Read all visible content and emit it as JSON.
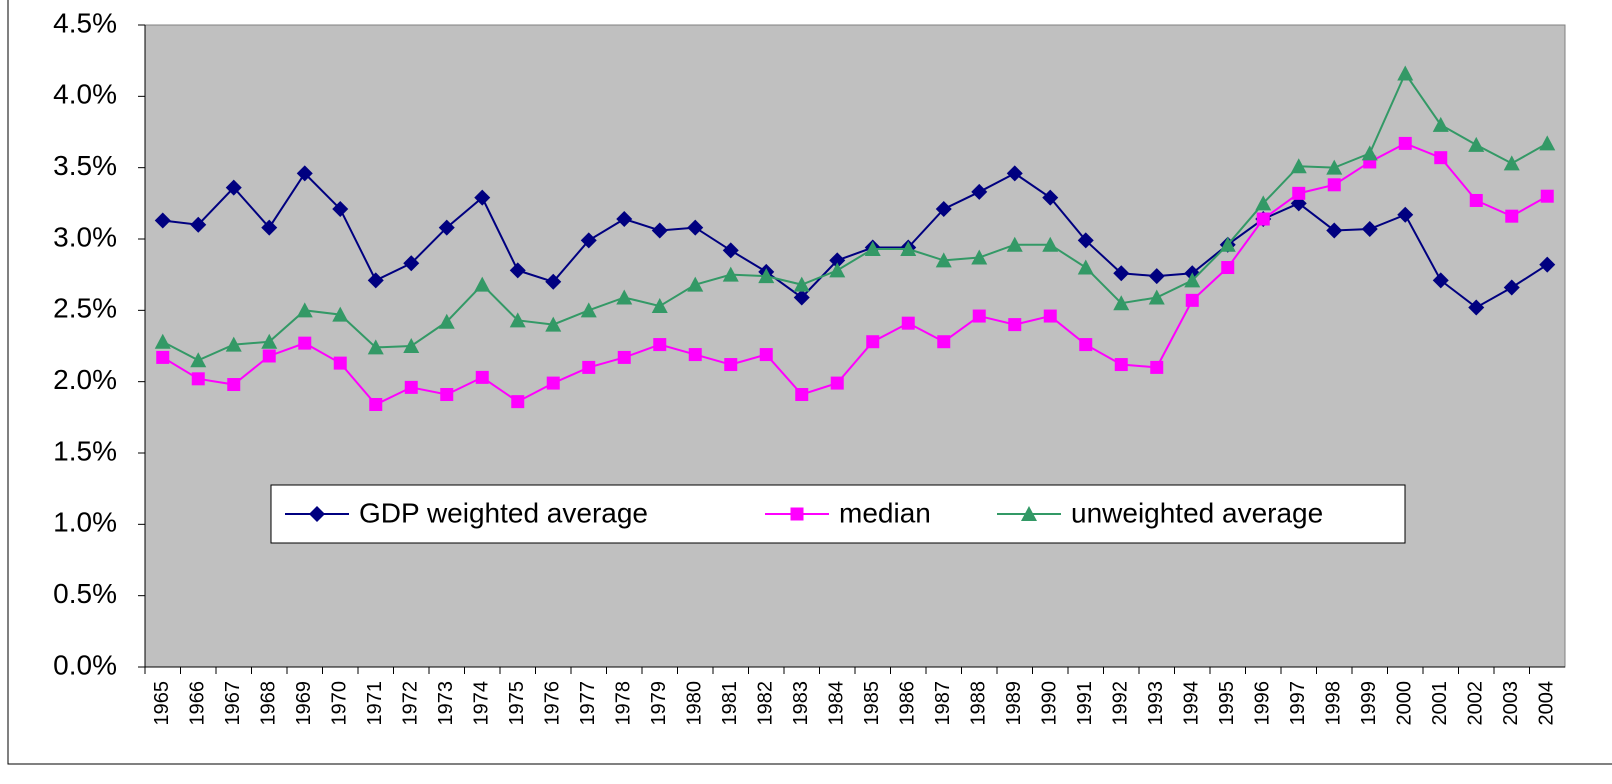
{
  "chart_data": {
    "type": "line",
    "categories": [
      "1965",
      "1966",
      "1967",
      "1968",
      "1969",
      "1970",
      "1971",
      "1972",
      "1973",
      "1974",
      "1975",
      "1976",
      "1977",
      "1978",
      "1979",
      "1980",
      "1981",
      "1982",
      "1983",
      "1984",
      "1985",
      "1986",
      "1987",
      "1988",
      "1989",
      "1990",
      "1991",
      "1992",
      "1993",
      "1994",
      "1995",
      "1996",
      "1997",
      "1998",
      "1999",
      "2000",
      "2001",
      "2002",
      "2003",
      "2004"
    ],
    "series": [
      {
        "name": "GDP weighted average",
        "color": "#000080",
        "marker": "diamond",
        "values": [
          3.13,
          3.1,
          3.36,
          3.08,
          3.46,
          3.21,
          2.71,
          2.83,
          3.08,
          3.29,
          2.78,
          2.7,
          2.99,
          3.14,
          3.06,
          3.08,
          2.92,
          2.77,
          2.59,
          2.85,
          2.94,
          2.94,
          3.21,
          3.33,
          3.46,
          3.29,
          2.99,
          2.76,
          2.74,
          2.76,
          2.96,
          3.14,
          3.25,
          3.06,
          3.07,
          3.17,
          2.71,
          2.52,
          2.66,
          2.82
        ]
      },
      {
        "name": "median",
        "color": "#ff00ff",
        "marker": "square",
        "values": [
          2.17,
          2.02,
          1.98,
          2.18,
          2.27,
          2.13,
          1.84,
          1.96,
          1.91,
          2.03,
          1.86,
          1.99,
          2.1,
          2.17,
          2.26,
          2.19,
          2.12,
          2.19,
          1.91,
          1.99,
          2.28,
          2.41,
          2.28,
          2.46,
          2.4,
          2.46,
          2.26,
          2.12,
          2.1,
          2.57,
          2.8,
          3.14,
          3.32,
          3.38,
          3.54,
          3.67,
          3.57,
          3.27,
          3.16,
          3.3
        ]
      },
      {
        "name": "unweighted average",
        "color": "#339966",
        "marker": "triangle",
        "values": [
          2.28,
          2.15,
          2.26,
          2.28,
          2.5,
          2.47,
          2.24,
          2.25,
          2.42,
          2.68,
          2.43,
          2.4,
          2.5,
          2.59,
          2.53,
          2.68,
          2.75,
          2.74,
          2.68,
          2.78,
          2.93,
          2.93,
          2.85,
          2.87,
          2.96,
          2.96,
          2.8,
          2.55,
          2.59,
          2.71,
          2.96,
          3.25,
          3.51,
          3.5,
          3.6,
          4.16,
          3.8,
          3.66,
          3.53,
          3.67
        ]
      }
    ],
    "ylim": [
      0,
      4.5
    ],
    "yticks": [
      {
        "value": 0,
        "label": "0.0%"
      },
      {
        "value": 0.5,
        "label": "0.5%"
      },
      {
        "value": 1,
        "label": "1.0%"
      },
      {
        "value": 1.5,
        "label": "1.5%"
      },
      {
        "value": 2,
        "label": "2.0%"
      },
      {
        "value": 2.5,
        "label": "2.5%"
      },
      {
        "value": 3,
        "label": "3.0%"
      },
      {
        "value": 3.5,
        "label": "3.5%"
      },
      {
        "value": 4,
        "label": "4.0%"
      },
      {
        "value": 4.5,
        "label": "4.5%"
      }
    ],
    "grid": false,
    "plot_background": "#c0c0c0",
    "legend": "center"
  }
}
